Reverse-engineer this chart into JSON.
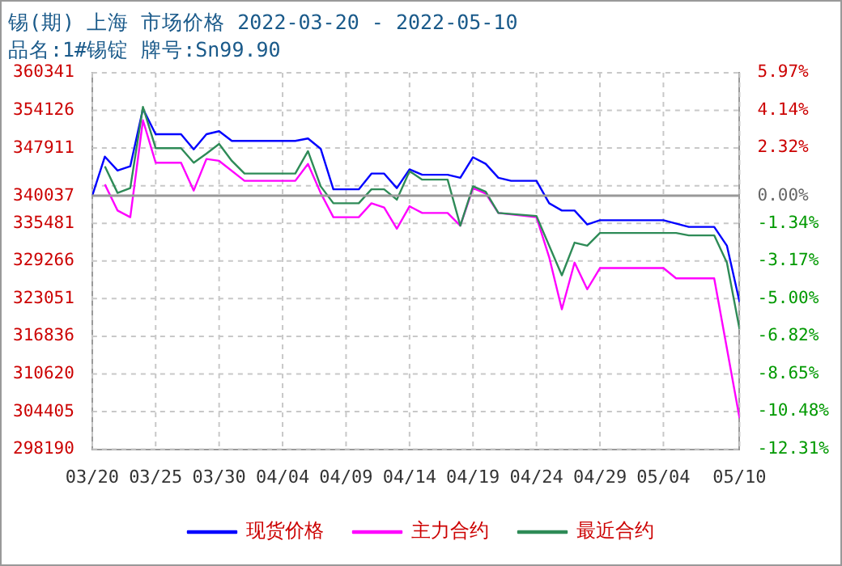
{
  "chart_data": {
    "type": "line",
    "title": "锡(期) 上海 市场价格 2022-03-20 - 2022-05-10",
    "subtitle": "品名:1#锡锭 牌号:Sn99.90",
    "series": [
      {
        "name": "现货价格",
        "color": "#0000ff",
        "x": [
          "2022-03-20",
          "2022-03-21",
          "2022-03-22",
          "2022-03-23",
          "2022-03-24",
          "2022-03-25",
          "2022-03-27",
          "2022-03-28",
          "2022-03-29",
          "2022-03-30",
          "2022-03-31",
          "2022-04-05",
          "2022-04-06",
          "2022-04-07",
          "2022-04-08",
          "2022-04-10",
          "2022-04-11",
          "2022-04-12",
          "2022-04-13",
          "2022-04-14",
          "2022-04-15",
          "2022-04-17",
          "2022-04-18",
          "2022-04-19",
          "2022-04-20",
          "2022-04-21",
          "2022-04-22",
          "2022-04-24",
          "2022-04-25",
          "2022-04-26",
          "2022-04-27",
          "2022-04-28",
          "2022-04-29",
          "2022-05-04",
          "2022-05-06",
          "2022-05-08",
          "2022-05-09",
          "2022-05-10"
        ],
        "values": [
          340000,
          346500,
          344200,
          344900,
          354400,
          350200,
          350200,
          347700,
          350200,
          350700,
          349100,
          349100,
          349500,
          347800,
          341100,
          341100,
          343700,
          343700,
          341300,
          344400,
          343500,
          343500,
          343000,
          346400,
          345300,
          343000,
          342500,
          342500,
          338800,
          337600,
          337600,
          335300,
          336000,
          336000,
          334900,
          334900,
          331800,
          322500
        ]
      },
      {
        "name": "主力合约",
        "color": "#ff00ff",
        "x": [
          "2022-03-21",
          "2022-03-22",
          "2022-03-23",
          "2022-03-24",
          "2022-03-25",
          "2022-03-27",
          "2022-03-28",
          "2022-03-29",
          "2022-03-30",
          "2022-04-01",
          "2022-04-05",
          "2022-04-06",
          "2022-04-07",
          "2022-04-08",
          "2022-04-10",
          "2022-04-11",
          "2022-04-12",
          "2022-04-13",
          "2022-04-14",
          "2022-04-15",
          "2022-04-17",
          "2022-04-18",
          "2022-04-19",
          "2022-04-20",
          "2022-04-21",
          "2022-04-24",
          "2022-04-25",
          "2022-04-26",
          "2022-04-27",
          "2022-04-28",
          "2022-04-29",
          "2022-05-04",
          "2022-05-05",
          "2022-05-08",
          "2022-05-10"
        ],
        "values": [
          341900,
          337600,
          336500,
          352500,
          345500,
          345500,
          340900,
          346100,
          345800,
          342500,
          342500,
          345300,
          340500,
          336500,
          336500,
          338800,
          338100,
          334600,
          338300,
          337200,
          337200,
          335100,
          341300,
          340400,
          337200,
          336500,
          329900,
          321300,
          329000,
          324600,
          328100,
          328100,
          326400,
          326400,
          303300
        ]
      },
      {
        "name": "最近合约",
        "color": "#2e8b57",
        "x": [
          "2022-03-21",
          "2022-03-22",
          "2022-03-23",
          "2022-03-24",
          "2022-03-25",
          "2022-03-27",
          "2022-03-28",
          "2022-03-29",
          "2022-03-30",
          "2022-03-31",
          "2022-04-01",
          "2022-04-05",
          "2022-04-06",
          "2022-04-07",
          "2022-04-08",
          "2022-04-10",
          "2022-04-11",
          "2022-04-12",
          "2022-04-13",
          "2022-04-14",
          "2022-04-15",
          "2022-04-17",
          "2022-04-18",
          "2022-04-19",
          "2022-04-20",
          "2022-04-21",
          "2022-04-24",
          "2022-04-26",
          "2022-04-27",
          "2022-04-28",
          "2022-04-29",
          "2022-05-05",
          "2022-05-06",
          "2022-05-08",
          "2022-05-09",
          "2022-05-10"
        ],
        "values": [
          344900,
          340500,
          341300,
          354700,
          347900,
          347900,
          345500,
          347000,
          348600,
          345800,
          343700,
          343700,
          347400,
          341600,
          338800,
          338800,
          341100,
          341100,
          339400,
          344100,
          342700,
          342700,
          335100,
          341600,
          340700,
          337200,
          336700,
          326900,
          332300,
          331800,
          333900,
          333900,
          333500,
          333500,
          329000,
          318000
        ]
      }
    ],
    "xlim": [
      "2022-03-20",
      "2022-05-10"
    ],
    "xticks": [
      {
        "value": "2022-03-20",
        "label": "03/20"
      },
      {
        "value": "2022-03-25",
        "label": "03/25"
      },
      {
        "value": "2022-03-30",
        "label": "03/30"
      },
      {
        "value": "2022-04-04",
        "label": "04/04"
      },
      {
        "value": "2022-04-09",
        "label": "04/09"
      },
      {
        "value": "2022-04-14",
        "label": "04/14"
      },
      {
        "value": "2022-04-19",
        "label": "04/19"
      },
      {
        "value": "2022-04-24",
        "label": "04/24"
      },
      {
        "value": "2022-04-29",
        "label": "04/29"
      },
      {
        "value": "2022-05-04",
        "label": "05/04"
      },
      {
        "value": "2022-05-10",
        "label": "05/10"
      }
    ],
    "ylim": [
      298190,
      360341
    ],
    "yticks": [
      298190,
      304405,
      310620,
      316836,
      323051,
      329266,
      335481,
      340037,
      {
        "value": 341696,
        "label": null
      },
      347911,
      354126,
      360341
    ],
    "y2lim": [
      -12.31,
      5.97
    ],
    "y2ticks": [
      {
        "value": -12.31,
        "label": "-12.31%"
      },
      {
        "value": -10.48,
        "label": "-10.48%"
      },
      {
        "value": -8.65,
        "label": "-8.65%"
      },
      {
        "value": -6.82,
        "label": "-6.82%"
      },
      {
        "value": -5.0,
        "label": "-5.00%"
      },
      {
        "value": -3.17,
        "label": "-3.17%"
      },
      {
        "value": -1.34,
        "label": "-1.34%"
      },
      {
        "value": 0,
        "label": "0.00%"
      },
      {
        "value": 0.49,
        "label": null
      },
      {
        "value": 2.32,
        "label": "2.32%"
      },
      {
        "value": 4.14,
        "label": "4.14%"
      },
      {
        "value": 5.97,
        "label": "5.97%"
      }
    ],
    "ref_lines": [
      {
        "axis": "y",
        "value": 340037,
        "color": "#999999"
      }
    ],
    "grid": true,
    "legend": "bottom",
    "marker": "none",
    "line_style": "solid"
  }
}
